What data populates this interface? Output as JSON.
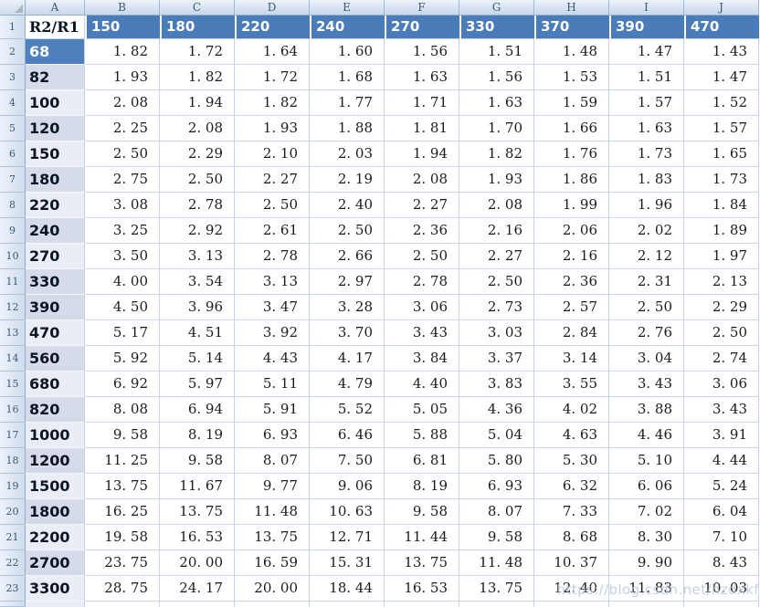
{
  "watermark": "https://blog.csdn.net/hzdxkf",
  "colors": {
    "header_blue": "#4A7CB9",
    "band_dark": "#D5DBE9",
    "band_light": "#EAEDF5",
    "gridline": "#C8D4E6"
  },
  "sheet": {
    "column_letters": [
      "A",
      "B",
      "C",
      "D",
      "E",
      "F",
      "G",
      "H",
      "I",
      "J"
    ],
    "header": {
      "row_number": "1",
      "corner_label": "R2/R1",
      "values": [
        "150",
        "180",
        "220",
        "240",
        "270",
        "330",
        "370",
        "390",
        "470"
      ]
    },
    "rows": [
      {
        "num": "2",
        "label": "68",
        "shade": "blue",
        "values": [
          "1. 82",
          "1. 72",
          "1. 64",
          "1. 60",
          "1. 56",
          "1. 51",
          "1. 48",
          "1. 47",
          "1. 43"
        ]
      },
      {
        "num": "3",
        "label": "82",
        "shade": "dark",
        "values": [
          "1. 93",
          "1. 82",
          "1. 72",
          "1. 68",
          "1. 63",
          "1. 56",
          "1. 53",
          "1. 51",
          "1. 47"
        ]
      },
      {
        "num": "4",
        "label": "100",
        "shade": "light",
        "values": [
          "2. 08",
          "1. 94",
          "1. 82",
          "1. 77",
          "1. 71",
          "1. 63",
          "1. 59",
          "1. 57",
          "1. 52"
        ]
      },
      {
        "num": "5",
        "label": "120",
        "shade": "dark",
        "values": [
          "2. 25",
          "2. 08",
          "1. 93",
          "1. 88",
          "1. 81",
          "1. 70",
          "1. 66",
          "1. 63",
          "1. 57"
        ]
      },
      {
        "num": "6",
        "label": "150",
        "shade": "light",
        "values": [
          "2. 50",
          "2. 29",
          "2. 10",
          "2. 03",
          "1. 94",
          "1. 82",
          "1. 76",
          "1. 73",
          "1. 65"
        ]
      },
      {
        "num": "7",
        "label": "180",
        "shade": "dark",
        "values": [
          "2. 75",
          "2. 50",
          "2. 27",
          "2. 19",
          "2. 08",
          "1. 93",
          "1. 86",
          "1. 83",
          "1. 73"
        ]
      },
      {
        "num": "8",
        "label": "220",
        "shade": "light",
        "values": [
          "3. 08",
          "2. 78",
          "2. 50",
          "2. 40",
          "2. 27",
          "2. 08",
          "1. 99",
          "1. 96",
          "1. 84"
        ]
      },
      {
        "num": "9",
        "label": "240",
        "shade": "dark",
        "values": [
          "3. 25",
          "2. 92",
          "2. 61",
          "2. 50",
          "2. 36",
          "2. 16",
          "2. 06",
          "2. 02",
          "1. 89"
        ]
      },
      {
        "num": "10",
        "label": "270",
        "shade": "light",
        "values": [
          "3. 50",
          "3. 13",
          "2. 78",
          "2. 66",
          "2. 50",
          "2. 27",
          "2. 16",
          "2. 12",
          "1. 97"
        ]
      },
      {
        "num": "11",
        "label": "330",
        "shade": "dark",
        "values": [
          "4. 00",
          "3. 54",
          "3. 13",
          "2. 97",
          "2. 78",
          "2. 50",
          "2. 36",
          "2. 31",
          "2. 13"
        ]
      },
      {
        "num": "12",
        "label": "390",
        "shade": "dark",
        "values": [
          "4. 50",
          "3. 96",
          "3. 47",
          "3. 28",
          "3. 06",
          "2. 73",
          "2. 57",
          "2. 50",
          "2. 29"
        ]
      },
      {
        "num": "13",
        "label": "470",
        "shade": "light",
        "values": [
          "5. 17",
          "4. 51",
          "3. 92",
          "3. 70",
          "3. 43",
          "3. 03",
          "2. 84",
          "2. 76",
          "2. 50"
        ]
      },
      {
        "num": "14",
        "label": "560",
        "shade": "dark",
        "values": [
          "5. 92",
          "5. 14",
          "4. 43",
          "4. 17",
          "3. 84",
          "3. 37",
          "3. 14",
          "3. 04",
          "2. 74"
        ]
      },
      {
        "num": "15",
        "label": "680",
        "shade": "light",
        "values": [
          "6. 92",
          "5. 97",
          "5. 11",
          "4. 79",
          "4. 40",
          "3. 83",
          "3. 55",
          "3. 43",
          "3. 06"
        ]
      },
      {
        "num": "16",
        "label": "820",
        "shade": "dark",
        "values": [
          "8. 08",
          "6. 94",
          "5. 91",
          "5. 52",
          "5. 05",
          "4. 36",
          "4. 02",
          "3. 88",
          "3. 43"
        ]
      },
      {
        "num": "17",
        "label": "1000",
        "shade": "light",
        "values": [
          "9. 58",
          "8. 19",
          "6. 93",
          "6. 46",
          "5. 88",
          "5. 04",
          "4. 63",
          "4. 46",
          "3. 91"
        ]
      },
      {
        "num": "18",
        "label": "1200",
        "shade": "dark",
        "values": [
          "11. 25",
          "9. 58",
          "8. 07",
          "7. 50",
          "6. 81",
          "5. 80",
          "5. 30",
          "5. 10",
          "4. 44"
        ]
      },
      {
        "num": "19",
        "label": "1500",
        "shade": "light",
        "values": [
          "13. 75",
          "11. 67",
          "9. 77",
          "9. 06",
          "8. 19",
          "6. 93",
          "6. 32",
          "6. 06",
          "5. 24"
        ]
      },
      {
        "num": "20",
        "label": "1800",
        "shade": "dark",
        "values": [
          "16. 25",
          "13. 75",
          "11. 48",
          "10. 63",
          "9. 58",
          "8. 07",
          "7. 33",
          "7. 02",
          "6. 04"
        ]
      },
      {
        "num": "21",
        "label": "2200",
        "shade": "light",
        "values": [
          "19. 58",
          "16. 53",
          "13. 75",
          "12. 71",
          "11. 44",
          "9. 58",
          "8. 68",
          "8. 30",
          "7. 10"
        ]
      },
      {
        "num": "22",
        "label": "2700",
        "shade": "dark",
        "values": [
          "23. 75",
          "20. 00",
          "16. 59",
          "15. 31",
          "13. 75",
          "11. 48",
          "10. 37",
          "9. 90",
          "8. 43"
        ]
      },
      {
        "num": "23",
        "label": "3300",
        "shade": "light",
        "values": [
          "28. 75",
          "24. 17",
          "20. 00",
          "18. 44",
          "16. 53",
          "13. 75",
          "12. 40",
          "11. 83",
          "10. 03"
        ]
      }
    ]
  }
}
